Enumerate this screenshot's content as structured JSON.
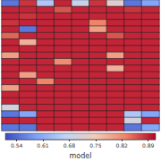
{
  "chart_data": {
    "type": "heatmap",
    "tick_labels": false,
    "cells": [
      [
        0.55,
        0.88,
        0.65,
        0.89,
        0.68,
        0.88,
        0.72,
        0.55,
        0.6
      ],
      [
        0.89,
        0.89,
        0.89,
        0.86,
        0.89,
        0.89,
        0.89,
        0.88,
        0.89
      ],
      [
        0.89,
        0.88,
        0.89,
        0.89,
        0.89,
        0.89,
        0.89,
        0.89,
        0.89
      ],
      [
        0.88,
        0.89,
        0.89,
        0.89,
        0.89,
        0.83,
        0.89,
        0.89,
        0.89
      ],
      [
        0.89,
        0.55,
        0.89,
        0.89,
        0.89,
        0.8,
        0.89,
        0.89,
        0.89
      ],
      [
        0.85,
        0.89,
        0.89,
        0.89,
        0.89,
        0.89,
        0.86,
        0.89,
        0.89
      ],
      [
        0.89,
        0.78,
        0.89,
        0.89,
        0.89,
        0.89,
        0.89,
        0.89,
        0.89
      ],
      [
        0.89,
        0.89,
        0.89,
        0.89,
        0.89,
        0.89,
        0.89,
        0.89,
        0.89
      ],
      [
        0.8,
        0.89,
        0.89,
        0.89,
        0.89,
        0.89,
        0.8,
        0.89,
        0.89
      ],
      [
        0.89,
        0.89,
        0.89,
        0.82,
        0.89,
        0.89,
        0.89,
        0.89,
        0.89
      ],
      [
        0.89,
        0.89,
        0.89,
        0.89,
        0.89,
        0.89,
        0.78,
        0.89,
        0.89
      ],
      [
        0.89,
        0.8,
        0.89,
        0.89,
        0.89,
        0.89,
        0.89,
        0.89,
        0.89
      ],
      [
        0.89,
        0.89,
        0.83,
        0.89,
        0.89,
        0.89,
        0.89,
        0.89,
        0.89
      ],
      [
        0.8,
        0.89,
        0.89,
        0.89,
        0.89,
        0.89,
        0.89,
        0.89,
        0.89
      ],
      [
        0.89,
        0.89,
        0.89,
        0.89,
        0.89,
        0.89,
        0.89,
        0.89,
        0.89
      ],
      [
        0.89,
        0.89,
        0.89,
        0.89,
        0.89,
        0.89,
        0.89,
        0.89,
        0.89
      ],
      [
        0.7,
        0.89,
        0.89,
        0.89,
        0.89,
        0.89,
        0.89,
        0.89,
        0.89
      ],
      [
        0.55,
        0.6,
        0.89,
        0.89,
        0.89,
        0.89,
        0.89,
        0.65,
        0.6
      ],
      [
        0.89,
        0.89,
        0.89,
        0.89,
        0.89,
        0.89,
        0.89,
        0.7,
        0.89
      ],
      [
        0.55,
        0.55,
        0.89,
        0.89,
        0.89,
        0.89,
        0.89,
        0.55,
        0.6
      ]
    ],
    "colorbar": {
      "label": "model",
      "range": [
        0.51,
        0.91
      ],
      "ticks": [
        0.54,
        0.61,
        0.68,
        0.75,
        0.82,
        0.89
      ]
    }
  }
}
